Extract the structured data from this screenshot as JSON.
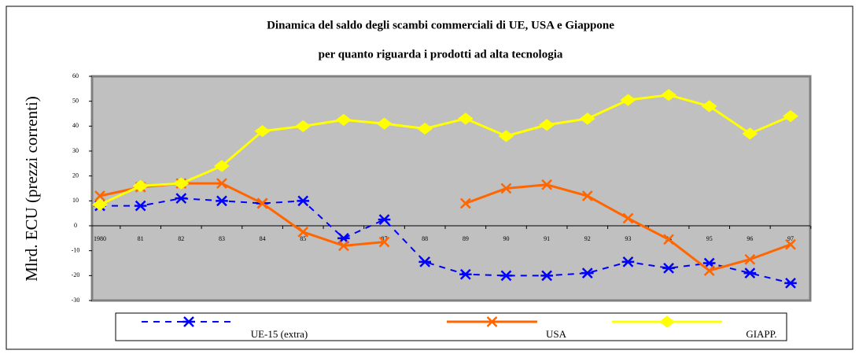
{
  "chart_data": {
    "type": "line",
    "title": "Dinamica del saldo degli scambi commerciali di UE, USA e Giappone",
    "subtitle": "per quanto riguarda i prodotti ad alta tecnologia",
    "y_label": "Mlrd. ECU (prezzi correnti)",
    "categories": [
      "1980",
      "81",
      "82",
      "83",
      "84",
      "85",
      "86",
      "87",
      "88",
      "89",
      "90",
      "91",
      "92",
      "93",
      "94",
      "95",
      "96",
      "97"
    ],
    "series": [
      {
        "name": "UE-15 (extra)",
        "color": "#0000ff",
        "marker": "asterisk",
        "dash": true,
        "values": [
          8,
          8,
          11,
          10,
          9,
          10,
          -5,
          2.5,
          -14.5,
          -19.5,
          -20,
          -20,
          -19,
          -14.5,
          -17,
          -15,
          -19,
          -23
        ]
      },
      {
        "name": "USA",
        "color": "#ff6600",
        "marker": "x",
        "dash": false,
        "values": [
          12,
          15.5,
          17,
          17,
          9,
          -2.5,
          -8,
          -6.5,
          null,
          9,
          15,
          16.5,
          12,
          3,
          -5.5,
          -18,
          -13.5,
          -7.5
        ]
      },
      {
        "name": "GIAPP.",
        "color": "#ffff00",
        "marker": "diamond",
        "dash": false,
        "values": [
          8.5,
          16,
          17,
          24,
          38,
          40,
          42.5,
          41,
          39,
          43,
          36,
          40.5,
          43,
          50.5,
          52.5,
          48,
          37,
          44
        ]
      }
    ],
    "ylim": [
      -30,
      60
    ],
    "yticks": [
      -30,
      -20,
      -10,
      0,
      10,
      20,
      30,
      40,
      50,
      60
    ],
    "grid": false
  }
}
